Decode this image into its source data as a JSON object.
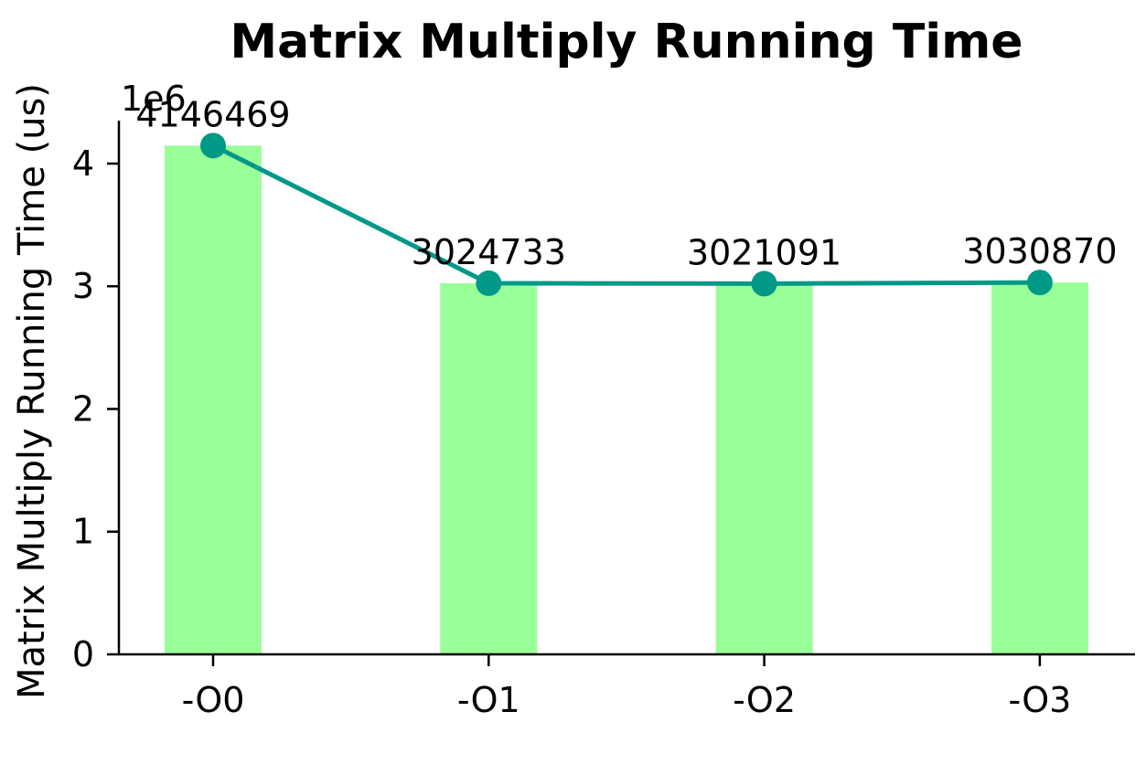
{
  "chart_data": {
    "type": "bar",
    "title": "Matrix Multiply Running Time",
    "xlabel": "",
    "ylabel": "Matrix Multiply Running Time (us)",
    "y_scale_label": "1e6",
    "categories": [
      "-O0",
      "-O1",
      "-O2",
      "-O3"
    ],
    "values": [
      4146469,
      3024733,
      3021091,
      3030870
    ],
    "data_labels": [
      "4146469",
      "3024733",
      "3021091",
      "3030870"
    ],
    "overlay_line": true,
    "ylim": [
      0,
      4350000
    ],
    "yticks": [
      0,
      1000000,
      2000000,
      3000000,
      4000000
    ],
    "ytick_labels": [
      "0",
      "1",
      "2",
      "3",
      "4"
    ],
    "grid": false,
    "colors": {
      "bar": "#99ff99",
      "line": "#009988"
    }
  }
}
